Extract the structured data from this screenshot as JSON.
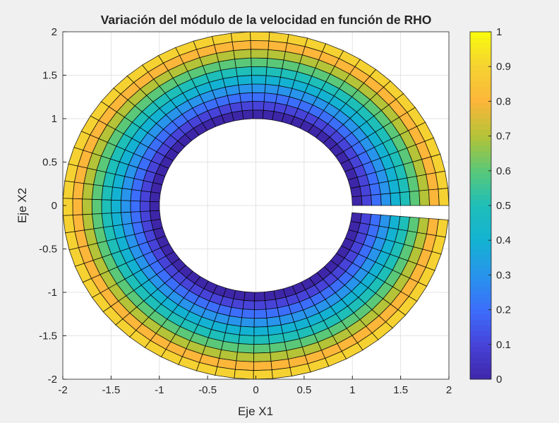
{
  "chart_data": {
    "type": "heatmap",
    "subtype": "polar surface (annular sector, faceted)",
    "title": "Variación del módulo de la velocidad en función de RHO",
    "xlabel": "Eje X1",
    "ylabel": "Eje X2",
    "xlim": [
      -2,
      2
    ],
    "ylim": [
      -2,
      2
    ],
    "xticks": [
      "-2",
      "-1.5",
      "-1",
      "-0.5",
      "0",
      "0.5",
      "1",
      "1.5",
      "2"
    ],
    "yticks": [
      "-2",
      "-1.5",
      "-1",
      "-0.5",
      "0",
      "0.5",
      "1",
      "1.5",
      "2"
    ],
    "grid": true,
    "rho_range": [
      1,
      2
    ],
    "rho_step": 0.1,
    "theta_range": [
      0,
      6.2
    ],
    "theta_step": 0.1,
    "color_value": "rho - 1",
    "colormap": "parula",
    "colorbar": {
      "location": "right",
      "clim": [
        0,
        1
      ],
      "ticks": [
        "0",
        "0.1",
        "0.2",
        "0.3",
        "0.4",
        "0.5",
        "0.6",
        "0.7",
        "0.8",
        "0.9",
        "1"
      ]
    }
  }
}
